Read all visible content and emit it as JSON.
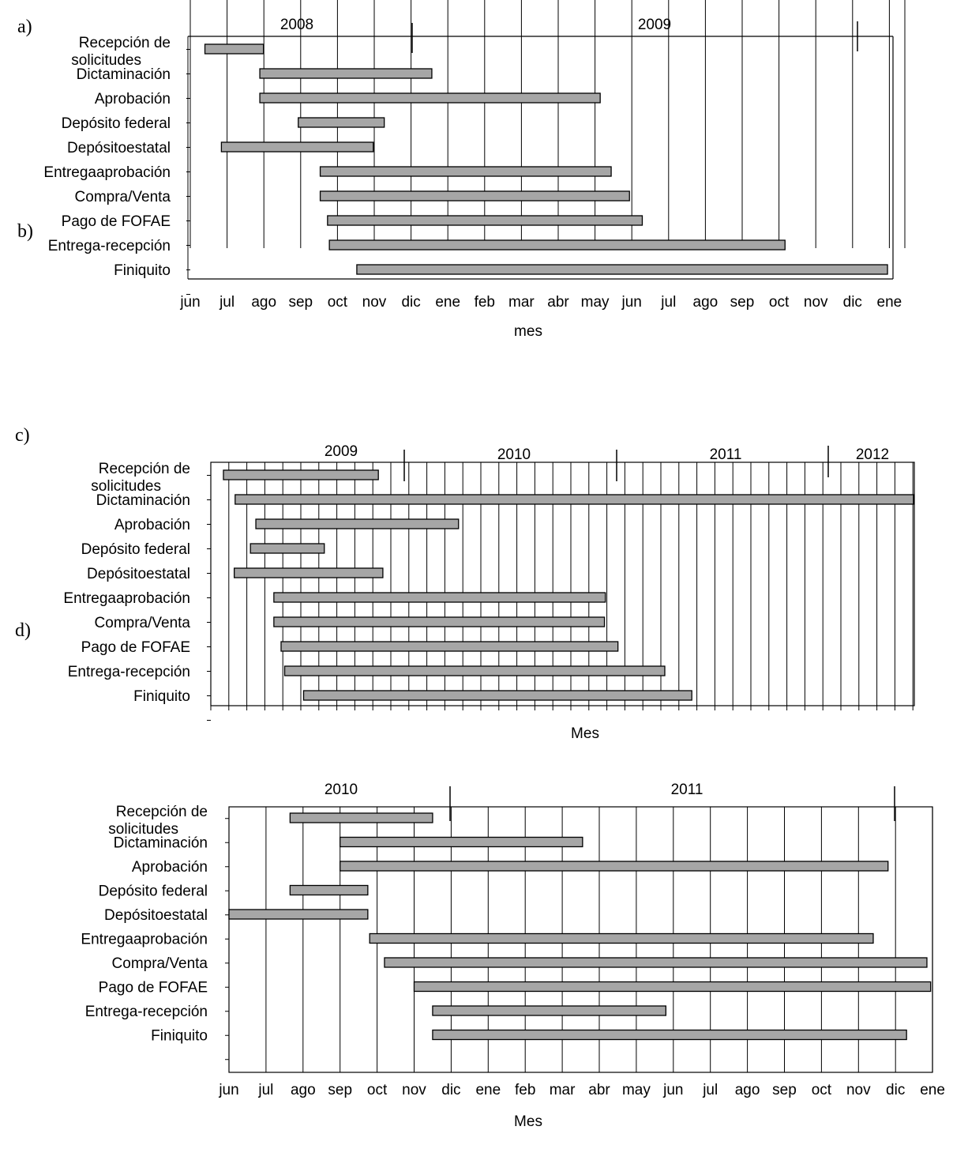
{
  "chart_data": [
    {
      "panel_label": "a)",
      "overlay_label": "b)",
      "type": "gantt",
      "categories": [
        "Recepción de\nsolicitudes",
        "Dictaminación",
        "Aprobación",
        "Depósito federal",
        "Depósitoestatal",
        "Entregaaprobación",
        "Compra/Venta",
        "Pago de FOFAE",
        "Entrega-recepción",
        "Finiquito"
      ],
      "x_ticks": [
        "jun",
        "jul",
        "ago",
        "sep",
        "oct",
        "nov",
        "dic",
        "ene",
        "feb",
        "mar",
        "abr",
        "may",
        "jun",
        "jul",
        "ago",
        "sep",
        "oct",
        "nov",
        "dic",
        "ene"
      ],
      "years": [
        "2008",
        "2009"
      ],
      "xlabel": "mes",
      "bars": [
        {
          "start": 0.4,
          "end": 2.0
        },
        {
          "start": 1.9,
          "end": 6.6
        },
        {
          "start": 1.9,
          "end": 11.2
        },
        {
          "start": 2.95,
          "end": 5.3
        },
        {
          "start": 0.85,
          "end": 5.0
        },
        {
          "start": 3.55,
          "end": 11.5
        },
        {
          "start": 3.55,
          "end": 12.0
        },
        {
          "start": 3.75,
          "end": 12.35
        },
        {
          "start": 3.8,
          "end": 16.25
        },
        {
          "start": 4.55,
          "end": 19.05
        }
      ],
      "xlim": [
        0,
        19.2
      ],
      "bar_color": "#a6a6a6"
    },
    {
      "panel_label": "c)",
      "type": "gantt",
      "categories": [
        "Recepción de\nsolicitudes",
        "Dictaminación",
        "Aprobación",
        "Depósito federal",
        "Depósitoestatal",
        "Entregaaprobación",
        "Compra/Venta",
        "Pago de FOFAE",
        "Entrega-recepción",
        "Finiquito"
      ],
      "x_ticks": [],
      "years": [
        "2009",
        "2010",
        "2011",
        "2012"
      ],
      "xlabel": "Mes",
      "bars": [
        {
          "start": 0.7,
          "end": 9.3
        },
        {
          "start": 1.35,
          "end": 39.0
        },
        {
          "start": 2.5,
          "end": 13.75
        },
        {
          "start": 2.2,
          "end": 6.3
        },
        {
          "start": 1.3,
          "end": 9.55
        },
        {
          "start": 3.5,
          "end": 21.9
        },
        {
          "start": 3.5,
          "end": 21.85
        },
        {
          "start": 3.9,
          "end": 22.6
        },
        {
          "start": 4.1,
          "end": 25.2
        },
        {
          "start": 5.15,
          "end": 26.7
        }
      ],
      "xlim": [
        0,
        39.05
      ],
      "bar_color": "#a6a6a6"
    },
    {
      "panel_label": "d)",
      "type": "gantt",
      "categories": [
        "Recepción de\nsolicitudes",
        "Dictaminación",
        "Aprobación",
        "Depósito federal",
        "Depósitoestatal",
        "Entregaaprobación",
        "Compra/Venta",
        "Pago de FOFAE",
        "Entrega-recepción",
        "Finiquito"
      ],
      "x_ticks": [
        "jun",
        "jul",
        "ago",
        "sep",
        "oct",
        "nov",
        "dic",
        "ene",
        "feb",
        "mar",
        "abr",
        "may",
        "jun",
        "jul",
        "ago",
        "sep",
        "oct",
        "nov",
        "dic",
        "ene"
      ],
      "years": [
        "2010",
        "2011"
      ],
      "xlabel": "Mes",
      "bars": [
        {
          "start": 1.65,
          "end": 5.5
        },
        {
          "start": 3.0,
          "end": 9.55
        },
        {
          "start": 3.0,
          "end": 17.8
        },
        {
          "start": 1.65,
          "end": 3.75
        },
        {
          "start": 0.0,
          "end": 3.75
        },
        {
          "start": 3.8,
          "end": 17.4
        },
        {
          "start": 4.2,
          "end": 18.85
        },
        {
          "start": 5.0,
          "end": 18.95
        },
        {
          "start": 5.5,
          "end": 11.8
        },
        {
          "start": 5.5,
          "end": 18.3
        }
      ],
      "xlim": [
        0,
        19
      ],
      "bar_color": "#a6a6a6"
    }
  ]
}
